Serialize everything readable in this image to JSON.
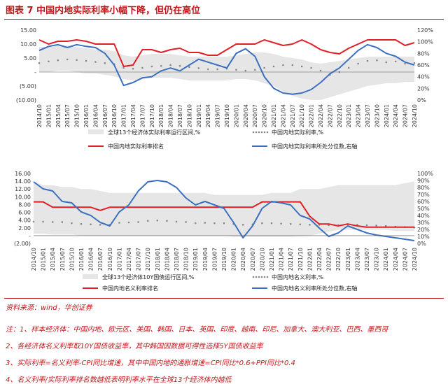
{
  "header": {
    "title": "图表 7   中国内地实际利率小幅下降，但仍在高位"
  },
  "chart_data": [
    {
      "type": "line",
      "title": "",
      "x": [
        "2014/10",
        "2015/01",
        "2015/04",
        "2015/07",
        "2015/10",
        "2016/01",
        "2016/04",
        "2016/07",
        "2016/10",
        "2017/01",
        "2017/04",
        "2017/07",
        "2017/10",
        "2018/01",
        "2018/04",
        "2018/07",
        "2018/10",
        "2019/01",
        "2019/04",
        "2019/07",
        "2019/10",
        "2020/01",
        "2020/04",
        "2020/07",
        "2020/10",
        "2021/01",
        "2021/04",
        "2021/07",
        "2021/10",
        "2022/01",
        "2022/04",
        "2022/07",
        "2022/10",
        "2023/01",
        "2023/04",
        "2023/07",
        "2023/10",
        "2024/01",
        "2024/04",
        "2024/07",
        "2024/10"
      ],
      "left_axis": {
        "ticks": [
          "15.00",
          "10.00",
          "5.00",
          "-",
          "(5.00)",
          "(10.00)"
        ],
        "ylim": [
          -10,
          15
        ]
      },
      "right_axis": {
        "ticks": [
          "120%",
          "100%",
          "80%",
          "60%",
          "40%",
          "20%",
          "0%"
        ],
        "ylim": [
          0,
          120
        ]
      },
      "legend": [
        "全球13个经济体实际利率运行区间,%",
        "中国内地实际利率,%",
        "中国内地实际利率排名",
        "中国内地实际利率所处分位数,右轴"
      ],
      "series": [
        {
          "name": "全球13个经济体实际利率运行区间,%",
          "kind": "band",
          "axis": "left",
          "upper": [
            9,
            9,
            9.5,
            9.5,
            9,
            8.5,
            8,
            8,
            7.5,
            6,
            5.5,
            6,
            6.5,
            6.5,
            6.5,
            6,
            5.5,
            5.5,
            5.5,
            5.5,
            5.5,
            6,
            6.5,
            7,
            7,
            6.5,
            5.5,
            5,
            4.5,
            3.5,
            3,
            3.5,
            4,
            4.5,
            5,
            5.5,
            5.5,
            5.5,
            5.5,
            5.5,
            5.5
          ],
          "lower": [
            0,
            0,
            0.5,
            0.5,
            0,
            -0.5,
            -0.5,
            -1,
            -1.5,
            -2.5,
            -3,
            -2.5,
            -2,
            -2,
            -2,
            -2.5,
            -3,
            -3,
            -3,
            -3,
            -3,
            -2.5,
            -2.5,
            -3,
            -4,
            -5,
            -7,
            -8.5,
            -9.5,
            -10,
            -10,
            -9,
            -8,
            -7,
            -6,
            -5,
            -4.5,
            -4,
            -4,
            -3.5,
            -3.5
          ]
        },
        {
          "name": "中国内地实际利率,%",
          "kind": "dots",
          "axis": "left",
          "values": [
            3.2,
            3.8,
            4.2,
            4.5,
            4.3,
            4,
            3.6,
            3.2,
            2.8,
            1.5,
            1.2,
            1.5,
            2,
            2.2,
            2.5,
            2.2,
            1.8,
            1.4,
            1,
            1,
            1.2,
            0.8,
            0.5,
            0.8,
            1.5,
            2,
            2.5,
            2.5,
            2,
            1.5,
            0.5,
            -1,
            0,
            1.5,
            3,
            4,
            4.2,
            3.5,
            3.8,
            3,
            3.2
          ]
        },
        {
          "name": "中国内地实际利率排名",
          "kind": "line",
          "axis": "left",
          "color": "#e01f26",
          "values": [
            11.5,
            10,
            11,
            11,
            11.5,
            11,
            10,
            10,
            10,
            2,
            2.5,
            8,
            8,
            7,
            8,
            8.5,
            7,
            7,
            6,
            6,
            8,
            10,
            10,
            10,
            11.5,
            10.5,
            9.5,
            10,
            11.5,
            10,
            8,
            7,
            6.5,
            8.5,
            10,
            11.5,
            11.5,
            11.5,
            11.5,
            9.5,
            10.5
          ]
        },
        {
          "name": "中国内地实际利率所处分位数,右轴",
          "kind": "line",
          "axis": "right",
          "color": "#3b6fc1",
          "values": [
            85,
            92,
            95,
            90,
            95,
            92,
            90,
            80,
            60,
            25,
            30,
            38,
            40,
            50,
            55,
            50,
            60,
            70,
            65,
            60,
            55,
            80,
            88,
            75,
            40,
            20,
            12,
            10,
            12,
            18,
            30,
            45,
            55,
            70,
            85,
            95,
            90,
            80,
            75,
            65,
            60
          ]
        }
      ]
    },
    {
      "type": "line",
      "title": "",
      "x": [
        "2014/10",
        "2015/01",
        "2015/04",
        "2015/07",
        "2015/10",
        "2016/01",
        "2016/04",
        "2016/07",
        "2016/10",
        "2017/01",
        "2017/04",
        "2017/07",
        "2017/10",
        "2018/01",
        "2018/04",
        "2018/07",
        "2018/10",
        "2019/01",
        "2019/04",
        "2019/07",
        "2019/10",
        "2020/01",
        "2020/04",
        "2020/07",
        "2020/10",
        "2021/01",
        "2021/04",
        "2021/07",
        "2021/10",
        "2022/01",
        "2022/04",
        "2022/07",
        "2022/10",
        "2023/01",
        "2023/04",
        "2023/07",
        "2023/10",
        "2024/01",
        "2024/04",
        "2024/07",
        "2024/10"
      ],
      "left_axis": {
        "ticks": [
          "16.00",
          "14.00",
          "12.00",
          "10.00",
          "8.00",
          "6.00",
          "4.00",
          "2.00",
          "-",
          "(2.00)"
        ],
        "ylim": [
          -2,
          16
        ]
      },
      "right_axis": {
        "ticks": [
          "100%",
          "90%",
          "80%",
          "70%",
          "60%",
          "50%",
          "40%",
          "30%",
          "20%",
          "10%",
          "0%"
        ],
        "ylim": [
          0,
          100
        ]
      },
      "legend": [
        "全球13个经济体10Y国债运行区间,%",
        "中国内地名义利率,%",
        "中国内地名义利率排名",
        "中国内地名义利率所处分位数,右轴"
      ],
      "series": [
        {
          "name": "全球13个经济体10Y国债运行区间,%",
          "kind": "band",
          "axis": "left",
          "upper": [
            14,
            13,
            13,
            12.5,
            12.5,
            12,
            12,
            11.5,
            11,
            11,
            11,
            11,
            11,
            11,
            11,
            11,
            11,
            11,
            11,
            10.5,
            10.5,
            10.5,
            10.5,
            10.5,
            10.5,
            11,
            11,
            11,
            12,
            12,
            12,
            12.5,
            13,
            13,
            13,
            13,
            13,
            13,
            13,
            13.5,
            14
          ],
          "lower": [
            0.5,
            0.5,
            0.3,
            0.3,
            0.3,
            0,
            0,
            0,
            0,
            0,
            0,
            0,
            0,
            0,
            0,
            0,
            0,
            0,
            0,
            0,
            0,
            -0.3,
            -0.3,
            -0.3,
            -0.3,
            -0.3,
            -0.3,
            -0.3,
            -0.2,
            0,
            0.5,
            1,
            1.5,
            1.5,
            1.5,
            1.5,
            1.5,
            1.5,
            1.2,
            1.2,
            1.2
          ]
        },
        {
          "name": "中国内地名义利率,%",
          "kind": "dots",
          "axis": "left",
          "values": [
            3.6,
            3.6,
            3.5,
            3.5,
            3.2,
            3,
            2.9,
            2.8,
            2.8,
            3.3,
            3.4,
            3.5,
            3.8,
            3.9,
            3.8,
            3.6,
            3.5,
            3.2,
            3.3,
            3.2,
            3.2,
            3,
            2.8,
            2.9,
            3.2,
            3.2,
            3.1,
            3,
            2.9,
            2.8,
            2.8,
            2.7,
            2.7,
            2.9,
            2.8,
            2.7,
            2.6,
            2.5,
            2.3,
            2.2,
            2.1
          ]
        },
        {
          "name": "中国内地名义利率排名",
          "kind": "line",
          "axis": "left",
          "color": "#e01f26",
          "values": [
            8.7,
            8.7,
            7.3,
            7.3,
            7.3,
            7.3,
            7.3,
            6.5,
            7.3,
            7.3,
            7.3,
            7.3,
            7.3,
            7.3,
            7.3,
            7.3,
            7.3,
            7.3,
            7.3,
            7.3,
            7.3,
            7.3,
            7.3,
            7.3,
            8.7,
            8.7,
            8.7,
            8.7,
            8.7,
            5,
            3,
            3,
            2.5,
            3,
            2.5,
            2.2,
            2.2,
            2.2,
            2.2,
            2.2,
            2.2
          ]
        },
        {
          "name": "中国内地名义利率所处分位数,右轴",
          "kind": "line",
          "axis": "right",
          "color": "#3b6fc1",
          "values": [
            88,
            78,
            75,
            60,
            58,
            45,
            40,
            30,
            25,
            45,
            55,
            75,
            88,
            90,
            88,
            80,
            65,
            55,
            60,
            55,
            50,
            30,
            8,
            25,
            50,
            60,
            58,
            55,
            40,
            35,
            22,
            10,
            15,
            25,
            20,
            15,
            12,
            10,
            8,
            6,
            4
          ]
        }
      ]
    }
  ],
  "source": "资料来源：wind，华创证券",
  "notes": [
    "注：1、样本经济体：中国内地、欧元区、美国、韩国、日本、英国、印度、越南、印尼、加拿大、澳大利亚、巴西、墨西哥",
    "2、各经济体名义利率取10Y国债收益率，其中韩国因数据可得性选择5Y国债收益率",
    "3、实际利率=名义利率-CPI同比增速，其中中国内地的通胀增速=CPI同比*0.6+PPI同比*0.4",
    "4、名义利率/实际利率排名数越低表明利率水平在全球13个经济体内越低"
  ]
}
